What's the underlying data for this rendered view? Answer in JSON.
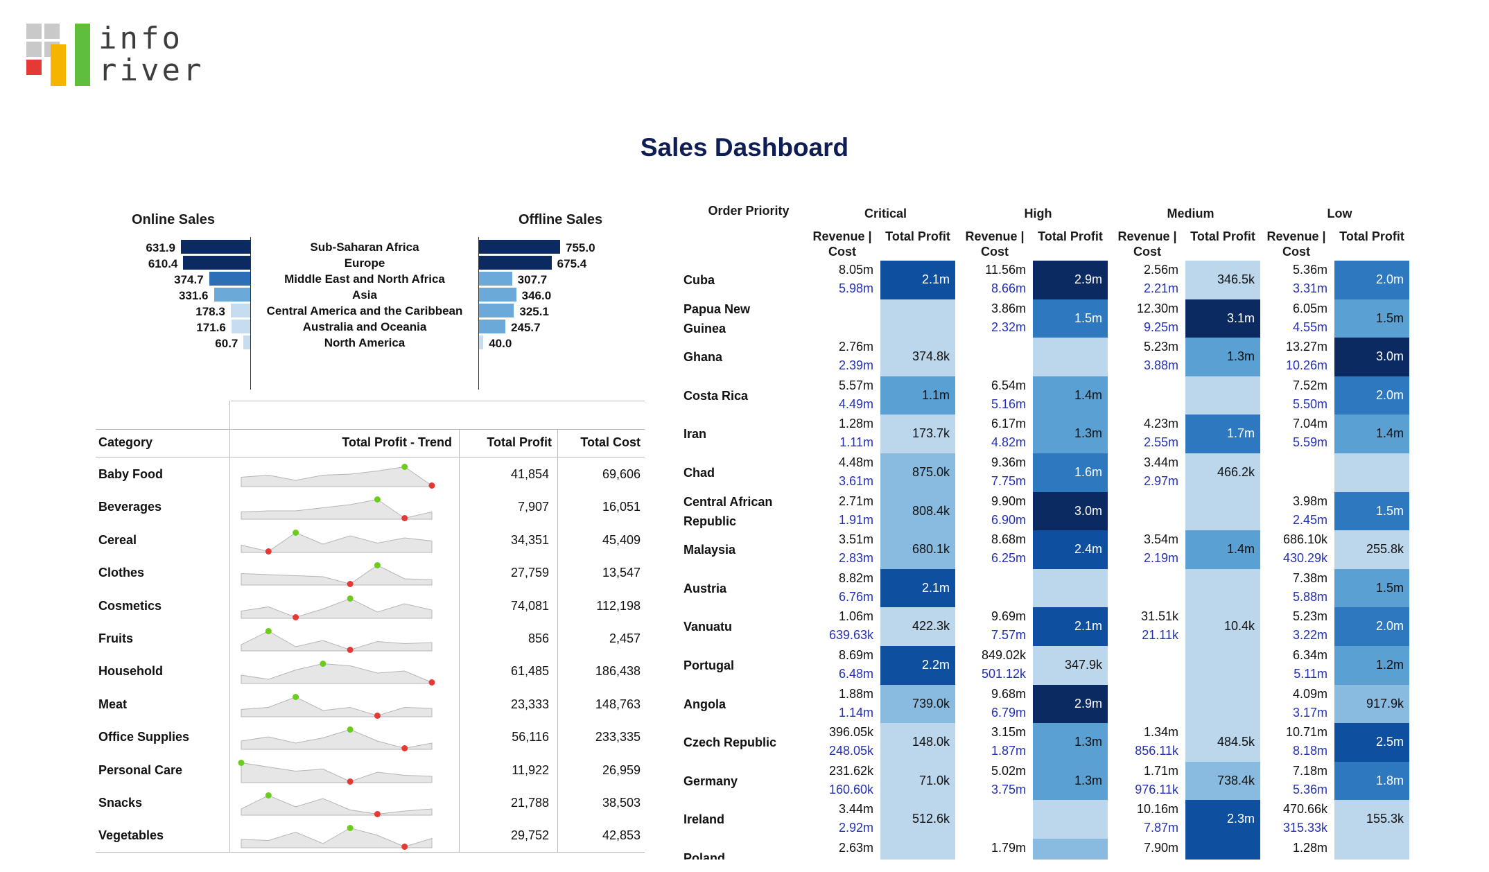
{
  "brand": {
    "line1": "info",
    "line2": "river"
  },
  "title": "Sales Dashboard",
  "regional": {
    "online_title": "Online Sales",
    "offline_title": "Offline Sales",
    "rows": [
      {
        "region": "Sub-Saharan Africa",
        "online": "631.9",
        "offline": "755.0"
      },
      {
        "region": "Europe",
        "online": "610.4",
        "offline": "675.4"
      },
      {
        "region": "Middle East and North Africa",
        "online": "374.7",
        "offline": "307.7"
      },
      {
        "region": "Asia",
        "online": "331.6",
        "offline": "346.0"
      },
      {
        "region": "Central America and the Caribbean",
        "online": "178.3",
        "offline": "325.1"
      },
      {
        "region": "Australia and Oceania",
        "online": "171.6",
        "offline": "245.7"
      },
      {
        "region": "North America",
        "online": "60.7",
        "offline": "40.0"
      }
    ]
  },
  "category_table": {
    "headers": {
      "category": "Category",
      "trend": "Total Profit - Trend",
      "profit": "Total Profit",
      "cost": "Total Cost"
    },
    "rows": [
      {
        "category": "Baby Food",
        "profit": "41,854",
        "cost": "69,606",
        "trend": [
          0.45,
          0.55,
          0.3,
          0.55,
          0.6,
          0.75,
          0.95,
          0.05
        ]
      },
      {
        "category": "Beverages",
        "profit": "7,907",
        "cost": "16,051",
        "trend": [
          0.35,
          0.4,
          0.4,
          0.55,
          0.7,
          0.95,
          0.05,
          0.35
        ]
      },
      {
        "category": "Cereal",
        "profit": "34,351",
        "cost": "45,409",
        "trend": [
          0.35,
          0.05,
          0.95,
          0.4,
          0.8,
          0.45,
          0.7,
          0.55
        ]
      },
      {
        "category": "Clothes",
        "profit": "27,759",
        "cost": "13,547",
        "trend": [
          0.55,
          0.5,
          0.45,
          0.4,
          0.05,
          0.95,
          0.3,
          0.25
        ]
      },
      {
        "category": "Cosmetics",
        "profit": "74,081",
        "cost": "112,198",
        "trend": [
          0.35,
          0.55,
          0.05,
          0.45,
          0.95,
          0.3,
          0.7,
          0.4
        ]
      },
      {
        "category": "Fruits",
        "profit": "856",
        "cost": "2,457",
        "trend": [
          0.3,
          0.95,
          0.2,
          0.5,
          0.05,
          0.45,
          0.35,
          0.4
        ]
      },
      {
        "category": "Household",
        "profit": "61,485",
        "cost": "186,438",
        "trend": [
          0.4,
          0.2,
          0.65,
          0.95,
          0.85,
          0.5,
          0.6,
          0.05
        ]
      },
      {
        "category": "Meat",
        "profit": "23,333",
        "cost": "148,763",
        "trend": [
          0.35,
          0.45,
          0.95,
          0.3,
          0.45,
          0.05,
          0.45,
          0.4
        ]
      },
      {
        "category": "Office Supplies",
        "profit": "56,116",
        "cost": "233,335",
        "trend": [
          0.4,
          0.6,
          0.3,
          0.55,
          0.95,
          0.4,
          0.05,
          0.3
        ]
      },
      {
        "category": "Personal Care",
        "profit": "11,922",
        "cost": "26,959",
        "trend": [
          0.95,
          0.75,
          0.55,
          0.65,
          0.05,
          0.5,
          0.35,
          0.3
        ]
      },
      {
        "category": "Snacks",
        "profit": "21,788",
        "cost": "38,503",
        "trend": [
          0.3,
          0.95,
          0.4,
          0.8,
          0.25,
          0.05,
          0.2,
          0.3
        ]
      },
      {
        "category": "Vegetables",
        "profit": "29,752",
        "cost": "42,853",
        "trend": [
          0.4,
          0.35,
          0.75,
          0.2,
          0.95,
          0.6,
          0.05,
          0.45
        ]
      }
    ]
  },
  "matrix": {
    "row_header": "Order Priority",
    "priorities": [
      "Critical",
      "High",
      "Medium",
      "Low"
    ],
    "sub_headers": {
      "rev_cost": "Revenue | Cost",
      "profit": "Total Profit"
    },
    "colors": {
      "l1": "#bcd6ec",
      "l2": "#89bbe0",
      "l3": "#5aa0d3",
      "l4": "#2d78bf",
      "l5": "#0e4fa0",
      "l6": "#0b2a62"
    },
    "rows": [
      {
        "country": "Cuba",
        "cells": [
          {
            "rev": "8.05m",
            "cost": "5.98m",
            "profit": "2.1m",
            "lvl": 5
          },
          {
            "rev": "11.56m",
            "cost": "8.66m",
            "profit": "2.9m",
            "lvl": 6
          },
          {
            "rev": "2.56m",
            "cost": "2.21m",
            "profit": "346.5k",
            "lvl": 1
          },
          {
            "rev": "5.36m",
            "cost": "3.31m",
            "profit": "2.0m",
            "lvl": 4
          }
        ]
      },
      {
        "country": "Papua New Guinea",
        "cells": [
          {
            "rev": "",
            "cost": "",
            "profit": "",
            "lvl": 1
          },
          {
            "rev": "3.86m",
            "cost": "2.32m",
            "profit": "1.5m",
            "lvl": 4
          },
          {
            "rev": "12.30m",
            "cost": "9.25m",
            "profit": "3.1m",
            "lvl": 6
          },
          {
            "rev": "6.05m",
            "cost": "4.55m",
            "profit": "1.5m",
            "lvl": 3
          }
        ]
      },
      {
        "country": "Ghana",
        "cells": [
          {
            "rev": "2.76m",
            "cost": "2.39m",
            "profit": "374.8k",
            "lvl": 1
          },
          {
            "rev": "",
            "cost": "",
            "profit": "",
            "lvl": 1
          },
          {
            "rev": "5.23m",
            "cost": "3.88m",
            "profit": "1.3m",
            "lvl": 3
          },
          {
            "rev": "13.27m",
            "cost": "10.26m",
            "profit": "3.0m",
            "lvl": 6
          }
        ]
      },
      {
        "country": "Costa Rica",
        "cells": [
          {
            "rev": "5.57m",
            "cost": "4.49m",
            "profit": "1.1m",
            "lvl": 3
          },
          {
            "rev": "6.54m",
            "cost": "5.16m",
            "profit": "1.4m",
            "lvl": 3
          },
          {
            "rev": "",
            "cost": "",
            "profit": "",
            "lvl": 1
          },
          {
            "rev": "7.52m",
            "cost": "5.50m",
            "profit": "2.0m",
            "lvl": 4
          }
        ]
      },
      {
        "country": "Iran",
        "cells": [
          {
            "rev": "1.28m",
            "cost": "1.11m",
            "profit": "173.7k",
            "lvl": 1
          },
          {
            "rev": "6.17m",
            "cost": "4.82m",
            "profit": "1.3m",
            "lvl": 3
          },
          {
            "rev": "4.23m",
            "cost": "2.55m",
            "profit": "1.7m",
            "lvl": 4
          },
          {
            "rev": "7.04m",
            "cost": "5.59m",
            "profit": "1.4m",
            "lvl": 3
          }
        ]
      },
      {
        "country": "Chad",
        "cells": [
          {
            "rev": "4.48m",
            "cost": "3.61m",
            "profit": "875.0k",
            "lvl": 2
          },
          {
            "rev": "9.36m",
            "cost": "7.75m",
            "profit": "1.6m",
            "lvl": 4
          },
          {
            "rev": "3.44m",
            "cost": "2.97m",
            "profit": "466.2k",
            "lvl": 1
          },
          {
            "rev": "",
            "cost": "",
            "profit": "",
            "lvl": 1
          }
        ]
      },
      {
        "country": "Central African Republic",
        "cells": [
          {
            "rev": "2.71m",
            "cost": "1.91m",
            "profit": "808.4k",
            "lvl": 2
          },
          {
            "rev": "9.90m",
            "cost": "6.90m",
            "profit": "3.0m",
            "lvl": 6
          },
          {
            "rev": "",
            "cost": "",
            "profit": "",
            "lvl": 1
          },
          {
            "rev": "3.98m",
            "cost": "2.45m",
            "profit": "1.5m",
            "lvl": 4
          }
        ]
      },
      {
        "country": "Malaysia",
        "cells": [
          {
            "rev": "3.51m",
            "cost": "2.83m",
            "profit": "680.1k",
            "lvl": 2
          },
          {
            "rev": "8.68m",
            "cost": "6.25m",
            "profit": "2.4m",
            "lvl": 5
          },
          {
            "rev": "3.54m",
            "cost": "2.19m",
            "profit": "1.4m",
            "lvl": 3
          },
          {
            "rev": "686.10k",
            "cost": "430.29k",
            "profit": "255.8k",
            "lvl": 1
          }
        ]
      },
      {
        "country": "Austria",
        "cells": [
          {
            "rev": "8.82m",
            "cost": "6.76m",
            "profit": "2.1m",
            "lvl": 5
          },
          {
            "rev": "",
            "cost": "",
            "profit": "",
            "lvl": 1
          },
          {
            "rev": "",
            "cost": "",
            "profit": "",
            "lvl": 1
          },
          {
            "rev": "7.38m",
            "cost": "5.88m",
            "profit": "1.5m",
            "lvl": 3
          }
        ]
      },
      {
        "country": "Vanuatu",
        "cells": [
          {
            "rev": "1.06m",
            "cost": "639.63k",
            "profit": "422.3k",
            "lvl": 1
          },
          {
            "rev": "9.69m",
            "cost": "7.57m",
            "profit": "2.1m",
            "lvl": 5
          },
          {
            "rev": "31.51k",
            "cost": "21.11k",
            "profit": "10.4k",
            "lvl": 1
          },
          {
            "rev": "5.23m",
            "cost": "3.22m",
            "profit": "2.0m",
            "lvl": 4
          }
        ]
      },
      {
        "country": "Portugal",
        "cells": [
          {
            "rev": "8.69m",
            "cost": "6.48m",
            "profit": "2.2m",
            "lvl": 5
          },
          {
            "rev": "849.02k",
            "cost": "501.12k",
            "profit": "347.9k",
            "lvl": 1
          },
          {
            "rev": "",
            "cost": "",
            "profit": "",
            "lvl": 1
          },
          {
            "rev": "6.34m",
            "cost": "5.11m",
            "profit": "1.2m",
            "lvl": 3
          }
        ]
      },
      {
        "country": "Angola",
        "cells": [
          {
            "rev": "1.88m",
            "cost": "1.14m",
            "profit": "739.0k",
            "lvl": 2
          },
          {
            "rev": "9.68m",
            "cost": "6.79m",
            "profit": "2.9m",
            "lvl": 6
          },
          {
            "rev": "",
            "cost": "",
            "profit": "",
            "lvl": 1
          },
          {
            "rev": "4.09m",
            "cost": "3.17m",
            "profit": "917.9k",
            "lvl": 2
          }
        ]
      },
      {
        "country": "Czech Republic",
        "cells": [
          {
            "rev": "396.05k",
            "cost": "248.05k",
            "profit": "148.0k",
            "lvl": 1
          },
          {
            "rev": "3.15m",
            "cost": "1.87m",
            "profit": "1.3m",
            "lvl": 3
          },
          {
            "rev": "1.34m",
            "cost": "856.11k",
            "profit": "484.5k",
            "lvl": 1
          },
          {
            "rev": "10.71m",
            "cost": "8.18m",
            "profit": "2.5m",
            "lvl": 5
          }
        ]
      },
      {
        "country": "Germany",
        "cells": [
          {
            "rev": "231.62k",
            "cost": "160.60k",
            "profit": "71.0k",
            "lvl": 1
          },
          {
            "rev": "5.02m",
            "cost": "3.75m",
            "profit": "1.3m",
            "lvl": 3
          },
          {
            "rev": "1.71m",
            "cost": "976.11k",
            "profit": "738.4k",
            "lvl": 2
          },
          {
            "rev": "7.18m",
            "cost": "5.36m",
            "profit": "1.8m",
            "lvl": 4
          }
        ]
      },
      {
        "country": "Ireland",
        "cells": [
          {
            "rev": "3.44m",
            "cost": "2.92m",
            "profit": "512.6k",
            "lvl": 1
          },
          {
            "rev": "",
            "cost": "",
            "profit": "",
            "lvl": 1
          },
          {
            "rev": "10.16m",
            "cost": "7.87m",
            "profit": "2.3m",
            "lvl": 5
          },
          {
            "rev": "470.66k",
            "cost": "315.33k",
            "profit": "155.3k",
            "lvl": 1
          }
        ]
      },
      {
        "country": "Poland",
        "cells": [
          {
            "rev": "2.63m",
            "cost": "",
            "profit": "",
            "lvl": 1
          },
          {
            "rev": "1.79m",
            "cost": "",
            "profit": "",
            "lvl": 2
          },
          {
            "rev": "7.90m",
            "cost": "",
            "profit": "",
            "lvl": 5
          },
          {
            "rev": "1.28m",
            "cost": "",
            "profit": "",
            "lvl": 1
          }
        ]
      }
    ]
  }
}
